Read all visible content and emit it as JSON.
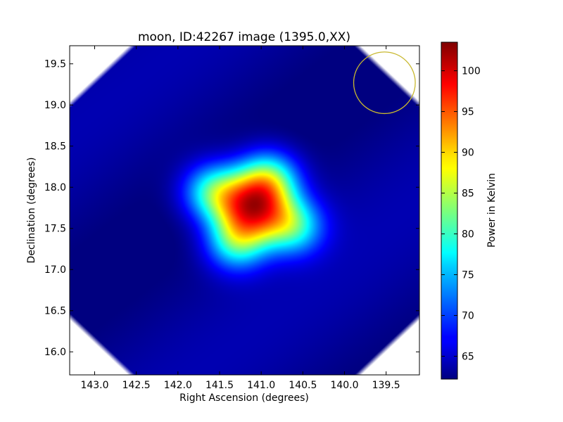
{
  "chart_data": {
    "type": "heatmap",
    "title": "moon, ID:42267 image (1395.0,XX)",
    "xlabel": "Right Ascension (degrees)",
    "ylabel": "Declination (degrees)",
    "xlim": [
      143.3,
      139.1
    ],
    "ylim": [
      15.72,
      19.72
    ],
    "x_ticks": [
      {
        "value": 143.0,
        "label": "143.0"
      },
      {
        "value": 142.5,
        "label": "142.5"
      },
      {
        "value": 142.0,
        "label": "142.0"
      },
      {
        "value": 141.5,
        "label": "141.5"
      },
      {
        "value": 141.0,
        "label": "141.0"
      },
      {
        "value": 140.5,
        "label": "140.5"
      },
      {
        "value": 140.0,
        "label": "140.0"
      },
      {
        "value": 139.5,
        "label": "139.5"
      }
    ],
    "y_ticks": [
      {
        "value": 16.0,
        "label": "16.0"
      },
      {
        "value": 16.5,
        "label": "16.5"
      },
      {
        "value": 17.0,
        "label": "17.0"
      },
      {
        "value": 17.5,
        "label": "17.5"
      },
      {
        "value": 18.0,
        "label": "18.0"
      },
      {
        "value": 18.5,
        "label": "18.5"
      },
      {
        "value": 19.0,
        "label": "19.0"
      },
      {
        "value": 19.5,
        "label": "19.5"
      }
    ],
    "colorbar": {
      "label": "Power in Kelvin",
      "colormap": "jet",
      "range": [
        62.2,
        103.5
      ],
      "ticks": [
        {
          "value": 65,
          "label": "65"
        },
        {
          "value": 70,
          "label": "70"
        },
        {
          "value": 75,
          "label": "75"
        },
        {
          "value": 80,
          "label": "80"
        },
        {
          "value": 85,
          "label": "85"
        },
        {
          "value": 90,
          "label": "90"
        },
        {
          "value": 95,
          "label": "95"
        },
        {
          "value": 100,
          "label": "100"
        }
      ]
    },
    "background_level": 63,
    "peak_level": 103.5,
    "source_center": {
      "ra": 141.1,
      "dec": 17.78
    },
    "source_lobes": [
      {
        "ra": 141.6,
        "dec": 17.95
      },
      {
        "ra": 140.9,
        "dec": 18.12
      },
      {
        "ra": 140.6,
        "dec": 17.52
      },
      {
        "ra": 141.3,
        "dec": 17.32
      }
    ],
    "beam_circle": {
      "ra": 139.52,
      "dec": 19.27,
      "radius_deg": 0.37,
      "color": "#c8b830"
    },
    "grid": false
  }
}
